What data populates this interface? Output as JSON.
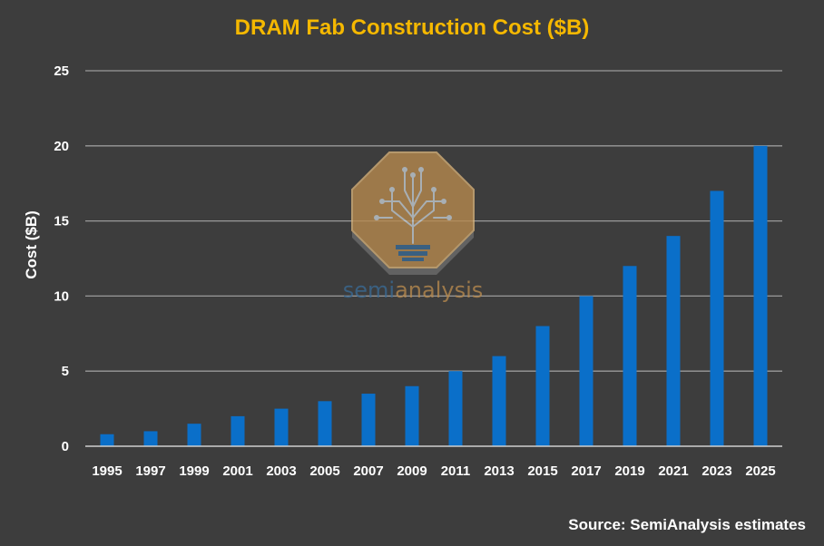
{
  "chart_data": {
    "type": "bar",
    "title": "DRAM Fab Construction Cost ($B)",
    "ylabel": "Cost ($B)",
    "xlabel": "",
    "categories": [
      "1995",
      "1997",
      "1999",
      "2001",
      "2003",
      "2005",
      "2007",
      "2009",
      "2011",
      "2013",
      "2015",
      "2017",
      "2019",
      "2021",
      "2023",
      "2025"
    ],
    "values": [
      0.8,
      1.0,
      1.5,
      2.0,
      2.5,
      3.0,
      3.5,
      4.0,
      5.0,
      6.0,
      8.0,
      10.0,
      12.0,
      14.0,
      17.0,
      20.0
    ],
    "ylim": [
      0,
      25
    ],
    "yticks": [
      0,
      5,
      10,
      15,
      20,
      25
    ],
    "grid": true,
    "legend": "none",
    "source": "Source: SemiAnalysis estimates"
  },
  "watermark": {
    "text_part1": "semi",
    "text_part2": "analysis",
    "icon": "circuit-tree-lightbulb-icon"
  },
  "colors": {
    "background": "#3d3d3d",
    "bar": "#0a6fc9",
    "title": "#f5b800",
    "grid": "#9a9a9a",
    "text": "#ffffff",
    "watermark_fill": "#b88a4e",
    "watermark_blue": "#3a6a95"
  }
}
